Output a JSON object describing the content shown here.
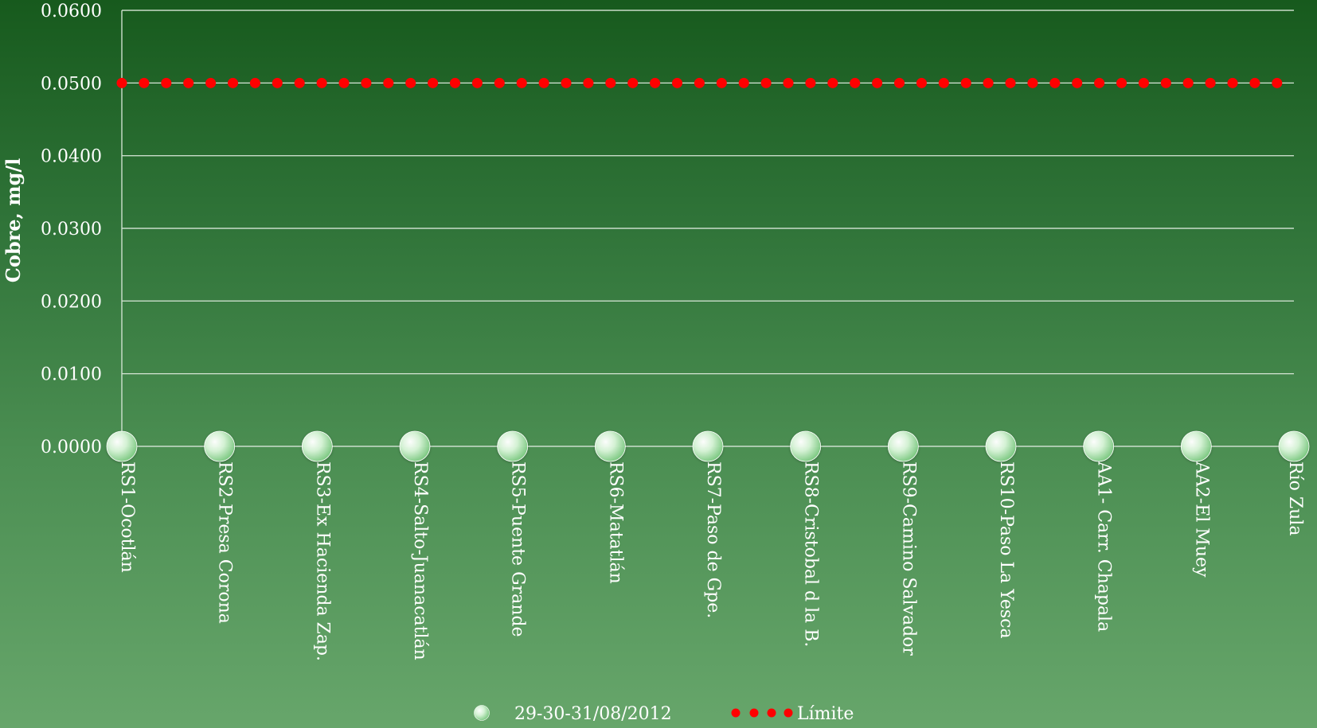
{
  "chart_data": {
    "type": "scatter",
    "title": "",
    "xlabel": "",
    "ylabel": "Cobre, mg/l",
    "ylim": [
      0,
      0.06
    ],
    "y_ticks": [
      "0.0000",
      "0.0100",
      "0.0200",
      "0.0300",
      "0.0400",
      "0.0500",
      "0.0600"
    ],
    "categories": [
      "RS1-Ocotlán",
      "RS2-Presa Corona",
      "RS3-Ex Hacienda Zap.",
      "RS4-Salto-Juanacatlán",
      "RS5-Puente Grande",
      "RS6-Matatlán",
      "RS7-Paso de Gpe.",
      "RS8-Cristobal d la B.",
      "RS9-Camino Salvador",
      "RS10-Paso La Yesca",
      "AA1- Carr. Chapala",
      "AA2-El Muey",
      "Río Zula"
    ],
    "series": [
      {
        "name": "29-30-31/08/2012",
        "type": "scatter",
        "values": [
          0,
          0,
          0,
          0,
          0,
          0,
          0,
          0,
          0,
          0,
          0,
          0,
          0
        ],
        "color": "#c8efc8"
      },
      {
        "name": "Límite",
        "type": "line",
        "style": "dotted",
        "values": [
          0.05,
          0.05,
          0.05,
          0.05,
          0.05,
          0.05,
          0.05,
          0.05,
          0.05,
          0.05,
          0.05,
          0.05,
          0.05
        ],
        "color": "#ff0000"
      }
    ],
    "grid": true,
    "legend_position": "bottom-center",
    "colors": {
      "gridline": "#d7e6d7",
      "axis_text": "#ffffff",
      "marker": "#c8efc8",
      "limit": "#ff0000"
    }
  }
}
